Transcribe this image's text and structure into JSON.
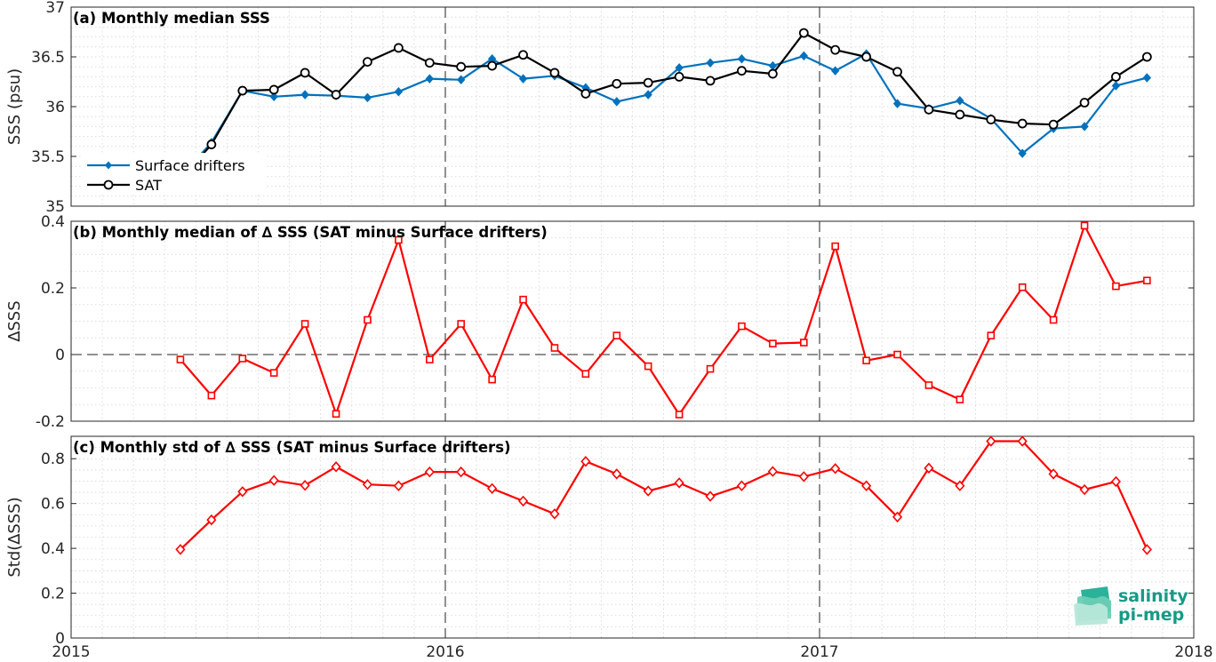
{
  "x_ticks": [
    "2015",
    "2016",
    "2017",
    "2018"
  ],
  "logo": {
    "line1": "salinity",
    "line2": "pi-mep",
    "color": "#179a86"
  },
  "colors": {
    "drifters": "#0072bd",
    "sat": "#000000",
    "delta": "#ff0000"
  },
  "chart_data": [
    {
      "type": "line",
      "title": "(a) Monthly median SSS",
      "ylabel": "SSS (psu)",
      "xlim": [
        2015,
        2018
      ],
      "ylim": [
        35,
        37
      ],
      "y_ticks": [
        "35",
        "35.5",
        "36",
        "36.5",
        "37"
      ],
      "legend_position": "lower-left",
      "grid": true,
      "x": [
        2015.292,
        2015.375,
        2015.458,
        2015.542,
        2015.625,
        2015.708,
        2015.792,
        2015.875,
        2015.958,
        2016.042,
        2016.125,
        2016.208,
        2016.292,
        2016.375,
        2016.458,
        2016.542,
        2016.625,
        2016.708,
        2016.792,
        2016.875,
        2016.958,
        2017.042,
        2017.125,
        2017.208,
        2017.292,
        2017.375,
        2017.458,
        2017.542,
        2017.625,
        2017.708,
        2017.792,
        2017.875
      ],
      "series": [
        {
          "name": "Surface drifters",
          "marker": "diamond",
          "values": [
            35.29,
            35.64,
            36.16,
            36.1,
            36.12,
            36.11,
            36.09,
            36.15,
            36.28,
            36.27,
            36.48,
            36.28,
            36.31,
            36.19,
            36.05,
            36.12,
            36.39,
            36.44,
            36.48,
            36.41,
            36.51,
            36.36,
            36.53,
            36.03,
            35.98,
            36.06,
            35.88,
            35.53,
            35.78,
            35.8,
            36.21,
            36.29
          ]
        },
        {
          "name": "SAT",
          "marker": "circle",
          "values": [
            35.27,
            35.62,
            36.16,
            36.17,
            36.34,
            36.12,
            36.45,
            36.59,
            36.44,
            36.4,
            36.41,
            36.52,
            36.34,
            36.13,
            36.23,
            36.24,
            36.3,
            36.26,
            36.36,
            36.33,
            36.74,
            36.57,
            36.5,
            36.35,
            35.97,
            35.92,
            35.87,
            35.83,
            35.82,
            36.04,
            36.3,
            36.5
          ]
        }
      ]
    },
    {
      "type": "line",
      "title": "(b) Monthly median of ∆ SSS (SAT minus Surface drifters)",
      "ylabel": "∆SSS",
      "xlim": [
        2015,
        2018
      ],
      "ylim": [
        -0.2,
        0.4
      ],
      "y_ticks": [
        "-0.2",
        "0",
        "0.2",
        "0.4"
      ],
      "zero_line": true,
      "grid": true,
      "x": [
        2015.292,
        2015.375,
        2015.458,
        2015.542,
        2015.625,
        2015.708,
        2015.792,
        2015.875,
        2015.958,
        2016.042,
        2016.125,
        2016.208,
        2016.292,
        2016.375,
        2016.458,
        2016.542,
        2016.625,
        2016.708,
        2016.792,
        2016.875,
        2016.958,
        2017.042,
        2017.125,
        2017.208,
        2017.292,
        2017.375,
        2017.458,
        2017.542,
        2017.625,
        2017.708,
        2017.792,
        2017.875
      ],
      "series": [
        {
          "marker": "square",
          "values": [
            -0.015,
            -0.123,
            -0.012,
            -0.055,
            0.092,
            -0.178,
            0.104,
            0.344,
            -0.015,
            0.092,
            -0.075,
            0.165,
            0.02,
            -0.058,
            0.057,
            -0.035,
            -0.18,
            -0.043,
            0.085,
            0.033,
            0.036,
            0.325,
            -0.018,
            0.0,
            -0.092,
            -0.135,
            0.057,
            0.202,
            0.104,
            0.387,
            0.205,
            0.222
          ]
        }
      ]
    },
    {
      "type": "line",
      "title": "(c) Monthly std of ∆ SSS (SAT minus Surface drifters)",
      "ylabel": "Std(∆SSS)",
      "xlim": [
        2015,
        2018
      ],
      "ylim": [
        0,
        0.9
      ],
      "y_ticks": [
        "0",
        "0.2",
        "0.4",
        "0.6",
        "0.8"
      ],
      "grid": true,
      "x": [
        2015.292,
        2015.375,
        2015.458,
        2015.542,
        2015.625,
        2015.708,
        2015.792,
        2015.875,
        2015.958,
        2016.042,
        2016.125,
        2016.208,
        2016.292,
        2016.375,
        2016.458,
        2016.542,
        2016.625,
        2016.708,
        2016.792,
        2016.875,
        2016.958,
        2017.042,
        2017.125,
        2017.208,
        2017.292,
        2017.375,
        2017.458,
        2017.542,
        2017.625,
        2017.708,
        2017.792,
        2017.875
      ],
      "series": [
        {
          "marker": "diamond-open",
          "values": [
            0.395,
            0.527,
            0.653,
            0.703,
            0.681,
            0.764,
            0.685,
            0.679,
            0.741,
            0.741,
            0.667,
            0.611,
            0.554,
            0.788,
            0.732,
            0.656,
            0.692,
            0.632,
            0.679,
            0.743,
            0.72,
            0.756,
            0.679,
            0.54,
            0.758,
            0.679,
            0.878,
            0.878,
            0.732,
            0.662,
            0.698,
            0.395
          ]
        }
      ]
    }
  ]
}
